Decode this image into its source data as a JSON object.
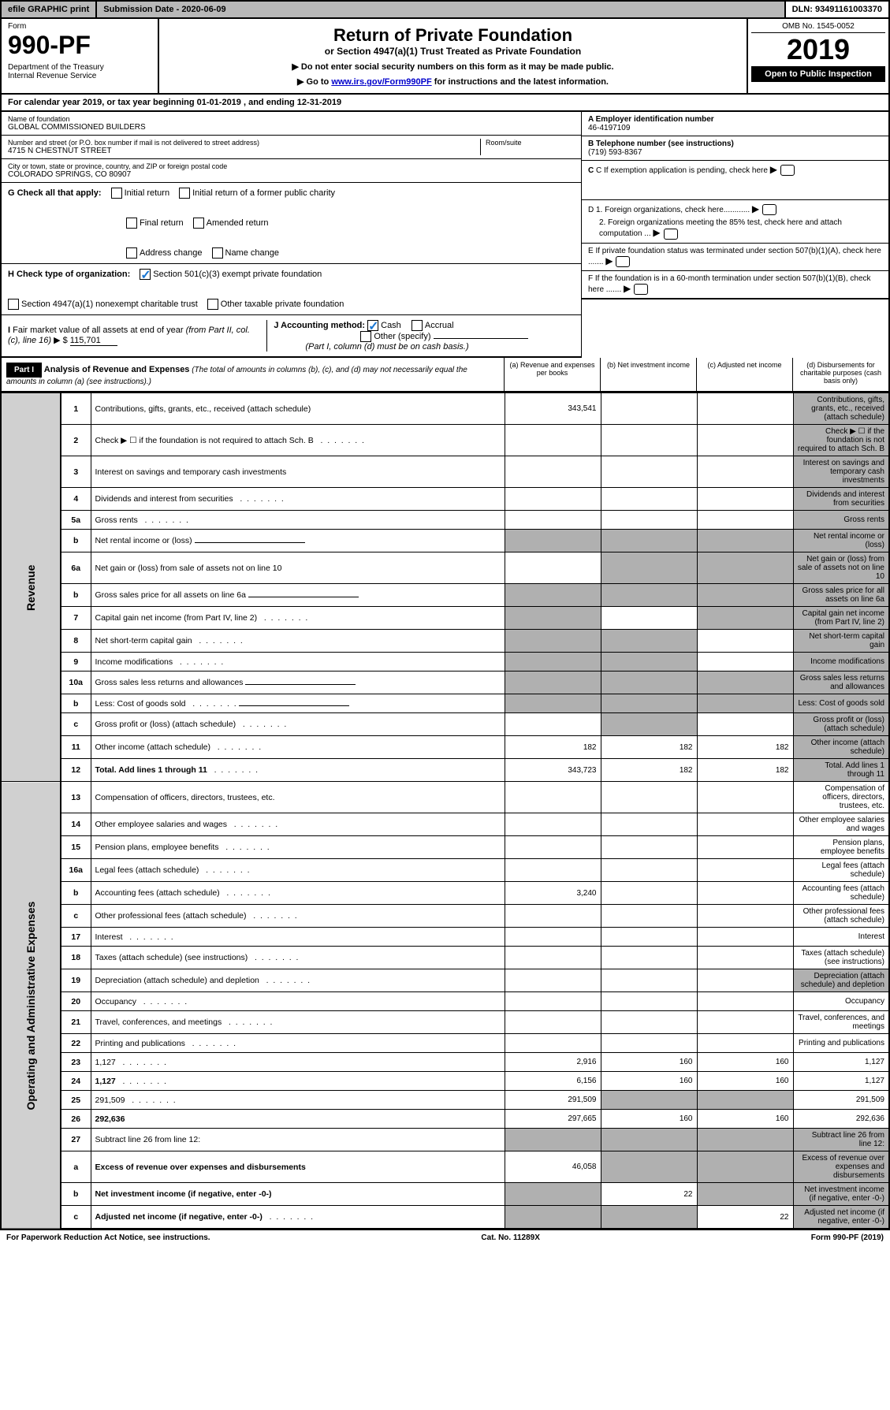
{
  "topbar": {
    "efile": "efile GRAPHIC print",
    "subdate": "Submission Date - 2020-06-09",
    "dln": "DLN: 93491161003370"
  },
  "header": {
    "form_label": "Form",
    "form_num": "990-PF",
    "dept": "Department of the Treasury\nInternal Revenue Service",
    "title": "Return of Private Foundation",
    "subtitle": "or Section 4947(a)(1) Trust Treated as Private Foundation",
    "note1": "▶ Do not enter social security numbers on this form as it may be made public.",
    "note2_pre": "▶ Go to ",
    "note2_link": "www.irs.gov/Form990PF",
    "note2_post": " for instructions and the latest information.",
    "omb": "OMB No. 1545-0052",
    "year": "2019",
    "open": "Open to Public Inspection"
  },
  "calyear": "For calendar year 2019, or tax year beginning 01-01-2019                     , and ending 12-31-2019",
  "info": {
    "name_lbl": "Name of foundation",
    "name": "GLOBAL COMMISSIONED BUILDERS",
    "addr_lbl": "Number and street (or P.O. box number if mail is not delivered to street address)",
    "addr": "4715 N CHESTNUT STREET",
    "room_lbl": "Room/suite",
    "city_lbl": "City or town, state or province, country, and ZIP or foreign postal code",
    "city": "COLORADO SPRINGS, CO  80907",
    "a_lbl": "A Employer identification number",
    "a_val": "46-4197109",
    "b_lbl": "B Telephone number (see instructions)",
    "b_val": "(719) 593-8367",
    "c_lbl": "C If exemption application is pending, check here",
    "d1": "D 1. Foreign organizations, check here............",
    "d2": "2. Foreign organizations meeting the 85% test, check here and attach computation ...",
    "e": "E  If private foundation status was terminated under section 507(b)(1)(A), check here .......",
    "f": "F  If the foundation is in a 60-month termination under section 507(b)(1)(B), check here ......."
  },
  "g": {
    "lbl": "G Check all that apply:",
    "opts": [
      "Initial return",
      "Initial return of a former public charity",
      "Final return",
      "Amended return",
      "Address change",
      "Name change"
    ]
  },
  "h": {
    "lbl": "H Check type of organization:",
    "opt1": "Section 501(c)(3) exempt private foundation",
    "opt2": "Section 4947(a)(1) nonexempt charitable trust",
    "opt3": "Other taxable private foundation"
  },
  "i": {
    "lbl": "I Fair market value of all assets at end of year (from Part II, col. (c), line 16) ▶ $",
    "val": "115,701"
  },
  "j": {
    "lbl": "J Accounting method:",
    "cash": "Cash",
    "accrual": "Accrual",
    "other": "Other (specify)",
    "note": "(Part I, column (d) must be on cash basis.)"
  },
  "part1": {
    "badge": "Part I",
    "title": "Analysis of Revenue and Expenses",
    "title_note": " (The total of amounts in columns (b), (c), and (d) may not necessarily equal the amounts in column (a) (see instructions).)",
    "cols": {
      "a": "(a)    Revenue and expenses per books",
      "b": "(b)   Net investment income",
      "c": "(c)   Adjusted net income",
      "d": "(d)   Disbursements for charitable purposes (cash basis only)"
    }
  },
  "side_labels": {
    "rev": "Revenue",
    "exp": "Operating and Administrative Expenses"
  },
  "rows": [
    {
      "n": "1",
      "d": "Contributions, gifts, grants, etc., received (attach schedule)",
      "a": "343,541",
      "shade_d": true
    },
    {
      "n": "2",
      "d": "Check ▶ ☐ if the foundation is not required to attach Sch. B",
      "shade_d": true,
      "dots": true
    },
    {
      "n": "3",
      "d": "Interest on savings and temporary cash investments",
      "shade_d": true
    },
    {
      "n": "4",
      "d": "Dividends and interest from securities",
      "shade_d": true,
      "dots": true
    },
    {
      "n": "5a",
      "d": "Gross rents",
      "shade_d": true,
      "dots": true
    },
    {
      "n": "b",
      "d": "Net rental income or (loss)",
      "shade_abcd": true,
      "underline": true
    },
    {
      "n": "6a",
      "d": "Net gain or (loss) from sale of assets not on line 10",
      "shade_bcd": true
    },
    {
      "n": "b",
      "d": "Gross sales price for all assets on line 6a",
      "shade_abcd": true,
      "underline": true
    },
    {
      "n": "7",
      "d": "Capital gain net income (from Part IV, line 2)",
      "shade_acd": true,
      "dots": true
    },
    {
      "n": "8",
      "d": "Net short-term capital gain",
      "shade_abd": true,
      "dots": true
    },
    {
      "n": "9",
      "d": "Income modifications",
      "shade_abd": true,
      "dots": true
    },
    {
      "n": "10a",
      "d": "Gross sales less returns and allowances",
      "shade_abcd": true,
      "underline": true
    },
    {
      "n": "b",
      "d": "Less: Cost of goods sold",
      "shade_abcd": true,
      "underline": true,
      "dots": true
    },
    {
      "n": "c",
      "d": "Gross profit or (loss) (attach schedule)",
      "shade_bd": true,
      "dots": true
    },
    {
      "n": "11",
      "d": "Other income (attach schedule)",
      "a": "182",
      "b": "182",
      "c": "182",
      "shade_d": true,
      "dots": true
    },
    {
      "n": "12",
      "d": "Total. Add lines 1 through 11",
      "a": "343,723",
      "b": "182",
      "c": "182",
      "shade_d": true,
      "bold": true,
      "dots": true
    },
    {
      "n": "13",
      "d": "Compensation of officers, directors, trustees, etc."
    },
    {
      "n": "14",
      "d": "Other employee salaries and wages",
      "dots": true
    },
    {
      "n": "15",
      "d": "Pension plans, employee benefits",
      "dots": true
    },
    {
      "n": "16a",
      "d": "Legal fees (attach schedule)",
      "dots": true
    },
    {
      "n": "b",
      "d": "Accounting fees (attach schedule)",
      "a": "3,240",
      "dots": true
    },
    {
      "n": "c",
      "d": "Other professional fees (attach schedule)",
      "dots": true
    },
    {
      "n": "17",
      "d": "Interest",
      "dots": true
    },
    {
      "n": "18",
      "d": "Taxes (attach schedule) (see instructions)",
      "dots": true
    },
    {
      "n": "19",
      "d": "Depreciation (attach schedule) and depletion",
      "shade_d": true,
      "dots": true
    },
    {
      "n": "20",
      "d": "Occupancy",
      "dots": true
    },
    {
      "n": "21",
      "d": "Travel, conferences, and meetings",
      "dots": true
    },
    {
      "n": "22",
      "d": "Printing and publications",
      "dots": true
    },
    {
      "n": "23",
      "d": "1,127",
      "a": "2,916",
      "b": "160",
      "c": "160",
      "dots": true
    },
    {
      "n": "24",
      "d": "1,127",
      "a": "6,156",
      "b": "160",
      "c": "160",
      "bold": true,
      "dots": true
    },
    {
      "n": "25",
      "d": "291,509",
      "a": "291,509",
      "shade_bc": true,
      "dots": true
    },
    {
      "n": "26",
      "d": "292,636",
      "a": "297,665",
      "b": "160",
      "c": "160",
      "bold": true
    },
    {
      "n": "27",
      "d": "Subtract line 26 from line 12:",
      "shade_abcd": true
    },
    {
      "n": "a",
      "d": "Excess of revenue over expenses and disbursements",
      "a": "46,058",
      "shade_bcd": true,
      "bold": true
    },
    {
      "n": "b",
      "d": "Net investment income (if negative, enter -0-)",
      "b": "22",
      "shade_acd": true,
      "bold": true
    },
    {
      "n": "c",
      "d": "Adjusted net income (if negative, enter -0-)",
      "c": "22",
      "shade_abd": true,
      "bold": true,
      "dots": true
    }
  ],
  "footer": {
    "left": "For Paperwork Reduction Act Notice, see instructions.",
    "mid": "Cat. No. 11289X",
    "right": "Form 990-PF (2019)"
  }
}
